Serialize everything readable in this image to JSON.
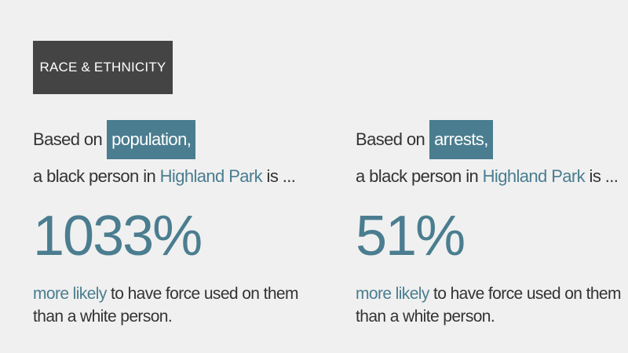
{
  "header": {
    "label": "RACE & ETHNICITY"
  },
  "columns": [
    {
      "intro": "Based on",
      "basis": "population,",
      "subject": "a black person in",
      "place": "Highland Park",
      "verb": "is ...",
      "figure": "1033%",
      "emphasis": "more likely",
      "rest_line1": "to have force used on them",
      "rest_line2": "than a white person."
    },
    {
      "intro": "Based on",
      "basis": "arrests,",
      "subject": "a black person in",
      "place": "Highland Park",
      "verb": "is ...",
      "figure": "51%",
      "emphasis": "more likely",
      "rest_line1": "to have force used on them",
      "rest_line2": "than a white person."
    }
  ]
}
